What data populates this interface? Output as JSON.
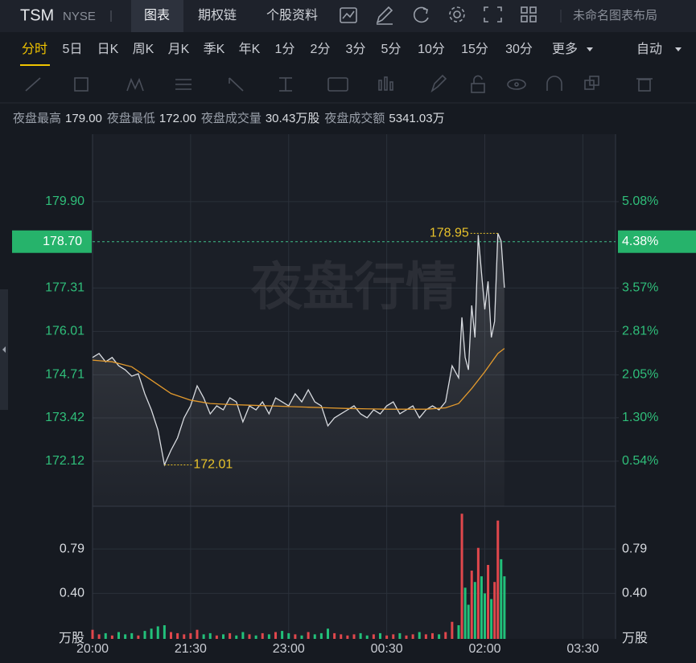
{
  "header": {
    "symbol": "TSM",
    "exchange": "NYSE",
    "tabs": [
      "图表",
      "期权链",
      "个股资料"
    ],
    "layout_name": "未命名图表布局"
  },
  "periods": {
    "items": [
      "分时",
      "5日",
      "日K",
      "周K",
      "月K",
      "季K",
      "年K",
      "1分",
      "2分",
      "3分",
      "5分",
      "10分",
      "15分",
      "30分"
    ],
    "more": "更多",
    "auto": "自动"
  },
  "info": [
    {
      "label": "夜盘最高",
      "value": "179.00"
    },
    {
      "label": "夜盘最低",
      "value": "172.00"
    },
    {
      "label": "夜盘成交量",
      "value": "30.43万股"
    },
    {
      "label": "夜盘成交额",
      "value": "5341.03万"
    }
  ],
  "chart_data": {
    "type": "line",
    "watermark": "夜盘行情",
    "xlim": [
      0,
      480
    ],
    "xticks": [
      {
        "value": 0,
        "label": "20:00"
      },
      {
        "value": 90,
        "label": "21:30"
      },
      {
        "value": 180,
        "label": "23:00"
      },
      {
        "value": 270,
        "label": "00:30"
      },
      {
        "value": 360,
        "label": "02:00"
      },
      {
        "value": 450,
        "label": "03:30"
      }
    ],
    "ylim": [
      170.77,
      181.92
    ],
    "yticks": [
      {
        "value": 179.9,
        "label": "179.90"
      },
      177.31,
      176.01,
      174.71,
      173.42,
      172.12
    ],
    "y2lim": [
      -0.25,
      6.26
    ],
    "y2ticks": [
      {
        "value": 5.08,
        "label": "5.08%"
      },
      {
        "value": 3.57,
        "label": "3.57%"
      },
      {
        "value": 2.81,
        "label": "2.81%"
      },
      {
        "value": 2.05,
        "label": "2.05%"
      },
      {
        "value": 1.3,
        "label": "1.30%"
      },
      {
        "value": 0.54,
        "label": "0.54%"
      }
    ],
    "last_price": {
      "value": 178.7,
      "label": "178.70"
    },
    "last_change": {
      "value": 4.38,
      "label": "4.38%"
    },
    "high_label": {
      "value": 178.95,
      "label": "178.95"
    },
    "low_label": {
      "value": 172.01,
      "label": "172.01"
    },
    "grid": true,
    "price": {
      "color": "#d9dce1",
      "x": [
        0,
        6,
        12,
        18,
        24,
        30,
        36,
        42,
        48,
        54,
        60,
        66,
        72,
        78,
        84,
        90,
        96,
        102,
        108,
        114,
        120,
        126,
        132,
        138,
        144,
        150,
        156,
        162,
        168,
        174,
        180,
        186,
        192,
        198,
        204,
        210,
        216,
        222,
        228,
        234,
        240,
        246,
        252,
        258,
        264,
        270,
        276,
        282,
        288,
        294,
        300,
        306,
        312,
        318,
        324,
        330,
        336,
        339,
        342,
        345,
        348,
        351,
        354,
        357,
        360,
        363,
        366,
        369,
        372,
        375,
        378
      ],
      "values": [
        175.23,
        175.35,
        175.1,
        175.23,
        174.98,
        174.86,
        174.67,
        174.74,
        174.14,
        173.66,
        173.06,
        172.01,
        172.45,
        172.82,
        173.42,
        173.78,
        174.38,
        174.02,
        173.54,
        173.78,
        173.66,
        174.02,
        173.9,
        173.3,
        173.78,
        173.66,
        173.9,
        173.54,
        174.02,
        173.9,
        173.78,
        174.14,
        173.9,
        174.26,
        173.9,
        173.78,
        173.18,
        173.42,
        173.54,
        173.66,
        173.78,
        173.54,
        173.42,
        173.66,
        173.54,
        173.78,
        173.9,
        173.54,
        173.66,
        173.78,
        173.42,
        173.66,
        173.78,
        173.66,
        173.9,
        174.98,
        174.62,
        176.43,
        175.23,
        174.86,
        176.79,
        175.83,
        178.9,
        177.76,
        176.67,
        177.51,
        175.83,
        176.31,
        178.95,
        178.72,
        177.32
      ]
    },
    "average": {
      "color": "#e39a2d",
      "x": [
        0,
        18,
        36,
        54,
        72,
        90,
        108,
        126,
        144,
        162,
        180,
        198,
        216,
        234,
        252,
        270,
        288,
        306,
        324,
        336,
        348,
        360,
        372,
        378
      ],
      "values": [
        175.15,
        175.1,
        174.95,
        174.55,
        174.15,
        173.95,
        173.85,
        173.82,
        173.8,
        173.78,
        173.76,
        173.74,
        173.72,
        173.7,
        173.69,
        173.68,
        173.68,
        173.68,
        173.72,
        173.85,
        174.3,
        174.8,
        175.35,
        175.5
      ]
    },
    "volume": {
      "unit": "万股",
      "ylim": [
        0,
        1.13
      ],
      "yticks": [
        0.79,
        {
          "value": 0.4,
          "label": "0.40"
        }
      ],
      "up_color": "#e0474c",
      "down_color": "#22c07a",
      "values": [
        0.08,
        0.04,
        0.05,
        0.03,
        0.06,
        0.04,
        0.05,
        0.03,
        0.07,
        0.09,
        0.11,
        0.12,
        0.06,
        0.05,
        0.04,
        0.05,
        0.08,
        0.04,
        0.05,
        0.03,
        0.04,
        0.05,
        0.03,
        0.06,
        0.04,
        0.03,
        0.05,
        0.04,
        0.06,
        0.07,
        0.05,
        0.04,
        0.03,
        0.06,
        0.04,
        0.05,
        0.09,
        0.05,
        0.04,
        0.03,
        0.04,
        0.05,
        0.03,
        0.04,
        0.05,
        0.03,
        0.04,
        0.05,
        0.03,
        0.04,
        0.06,
        0.04,
        0.05,
        0.04,
        0.06,
        0.15,
        0.12,
        1.1,
        0.45,
        0.3,
        0.6,
        0.5,
        0.8,
        0.55,
        0.4,
        0.65,
        0.35,
        0.5,
        1.04,
        0.7,
        0.55
      ]
    }
  }
}
